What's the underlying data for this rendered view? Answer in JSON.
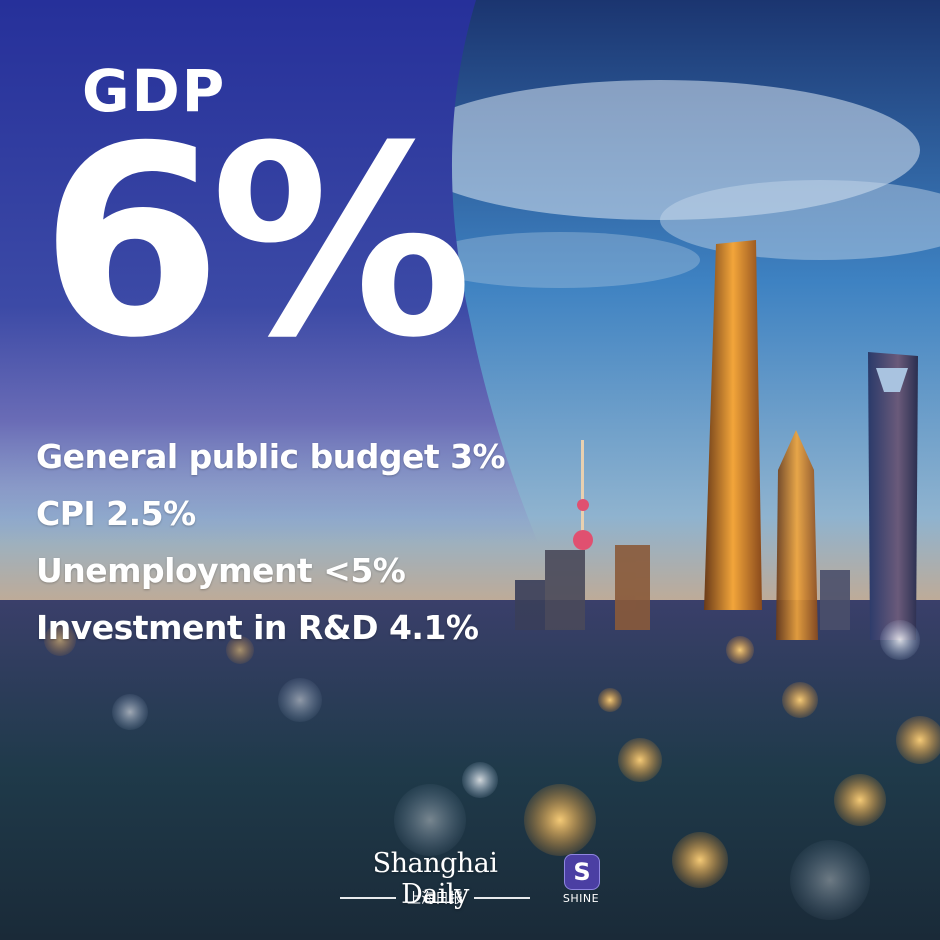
{
  "headline": "GDP",
  "big_value": "6%",
  "stats": [
    "General public budget 3%",
    "CPI 2.5%",
    "Unemployment <5%",
    "Investment in R&D 4.1%"
  ],
  "brand": {
    "name": "Shanghai Daily",
    "chinese": "上海日报",
    "shine_letter": "S",
    "shine_label": "SHINE"
  },
  "colors": {
    "panel_blue": "#2e3a9e",
    "sky_blue": "#3a78b8",
    "tower_gold": "#f2a53a",
    "text": "#ffffff",
    "shine_purple": "#4b3fa3"
  }
}
